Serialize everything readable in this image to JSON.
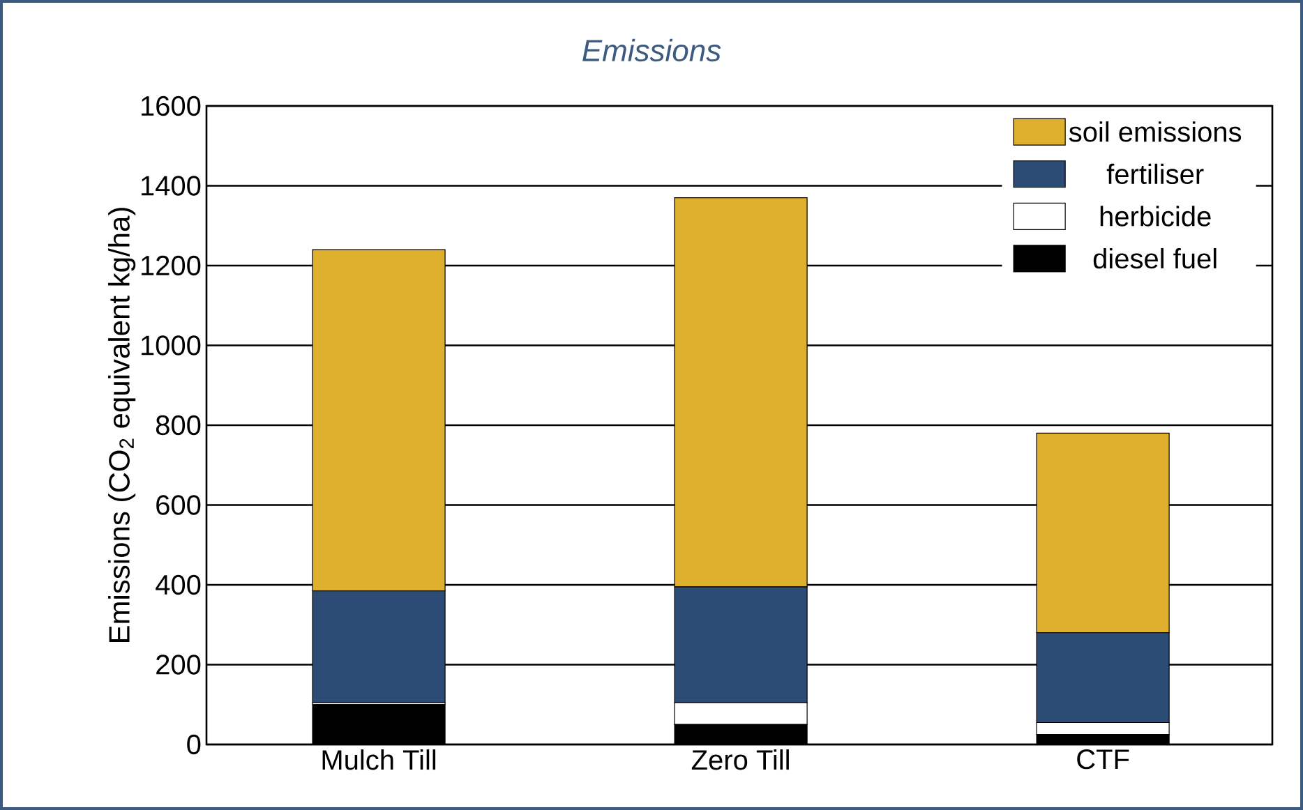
{
  "chart_data": {
    "type": "bar",
    "title": "Emissions",
    "ylabel": "Emissions (CO$_{2}$ equivalent kg/ha)",
    "categories": [
      "Mulch Till",
      "Zero Till",
      "CTF"
    ],
    "stacked": true,
    "ylim": [
      0,
      1600
    ],
    "yticks": [
      0,
      200,
      400,
      600,
      800,
      1000,
      1200,
      1400,
      1600
    ],
    "grid": "y",
    "legend": "top right",
    "series": [
      {
        "name": "diesel fuel",
        "color": "#000000",
        "values": [
          100,
          50,
          25
        ]
      },
      {
        "name": "herbicide",
        "color": "#ffffff",
        "values": [
          5,
          55,
          30
        ]
      },
      {
        "name": "fertiliser",
        "color": "#2c4c76",
        "values": [
          280,
          290,
          225
        ]
      },
      {
        "name": "soil emissions",
        "color": "#dfb02e",
        "values": [
          855,
          975,
          500
        ]
      }
    ]
  }
}
